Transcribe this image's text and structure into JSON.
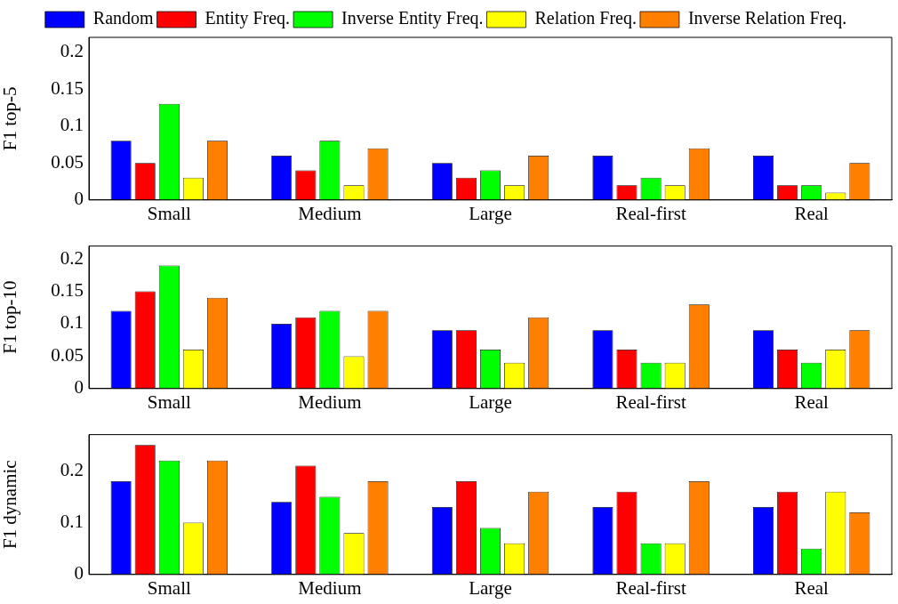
{
  "chart_data": [
    {
      "type": "bar",
      "ylabel": "F1 top-5",
      "categories": [
        "Small",
        "Medium",
        "Large",
        "Real-first",
        "Real"
      ],
      "ylim": [
        0,
        0.22
      ],
      "yticks": [
        0,
        0.05,
        0.1,
        0.15,
        0.2
      ],
      "grid": false,
      "legend": "top",
      "series": [
        {
          "name": "Random",
          "color": "#0000ff",
          "values": [
            0.08,
            0.06,
            0.05,
            0.06,
            0.06
          ]
        },
        {
          "name": "Entity Freq.",
          "color": "#ff0000",
          "values": [
            0.05,
            0.04,
            0.03,
            0.02,
            0.02
          ]
        },
        {
          "name": "Inverse Entity Freq.",
          "color": "#00ff00",
          "values": [
            0.13,
            0.08,
            0.04,
            0.03,
            0.02
          ]
        },
        {
          "name": "Relation Freq.",
          "color": "#ffff00",
          "values": [
            0.03,
            0.02,
            0.02,
            0.02,
            0.01
          ]
        },
        {
          "name": "Inverse Relation Freq.",
          "color": "#ff8000",
          "values": [
            0.08,
            0.07,
            0.06,
            0.07,
            0.05
          ]
        }
      ]
    },
    {
      "type": "bar",
      "ylabel": "F1 top-10",
      "categories": [
        "Small",
        "Medium",
        "Large",
        "Real-first",
        "Real"
      ],
      "ylim": [
        0,
        0.22
      ],
      "yticks": [
        0,
        0.05,
        0.1,
        0.15,
        0.2
      ],
      "grid": false,
      "legend": false,
      "series": [
        {
          "color": "#0000ff",
          "values": [
            0.12,
            0.1,
            0.09,
            0.09,
            0.09
          ]
        },
        {
          "color": "#ff0000",
          "values": [
            0.15,
            0.11,
            0.09,
            0.06,
            0.06
          ]
        },
        {
          "color": "#00ff00",
          "values": [
            0.19,
            0.12,
            0.06,
            0.04,
            0.04
          ]
        },
        {
          "color": "#ffff00",
          "values": [
            0.06,
            0.05,
            0.04,
            0.04,
            0.06
          ]
        },
        {
          "color": "#ff8000",
          "values": [
            0.14,
            0.12,
            0.11,
            0.13,
            0.09
          ]
        }
      ]
    },
    {
      "type": "bar",
      "ylabel": "F1 dynamic",
      "categories": [
        "Small",
        "Medium",
        "Large",
        "Real-first",
        "Real"
      ],
      "ylim": [
        0,
        0.27
      ],
      "yticks": [
        0,
        0.1,
        0.2
      ],
      "grid": false,
      "legend": false,
      "series": [
        {
          "color": "#0000ff",
          "values": [
            0.18,
            0.14,
            0.13,
            0.13,
            0.13
          ]
        },
        {
          "color": "#ff0000",
          "values": [
            0.25,
            0.21,
            0.18,
            0.16,
            0.16
          ]
        },
        {
          "color": "#00ff00",
          "values": [
            0.22,
            0.15,
            0.09,
            0.06,
            0.05
          ]
        },
        {
          "color": "#ffff00",
          "values": [
            0.1,
            0.08,
            0.06,
            0.06,
            0.16
          ]
        },
        {
          "color": "#ff8000",
          "values": [
            0.22,
            0.18,
            0.16,
            0.18,
            0.12
          ]
        }
      ]
    }
  ]
}
